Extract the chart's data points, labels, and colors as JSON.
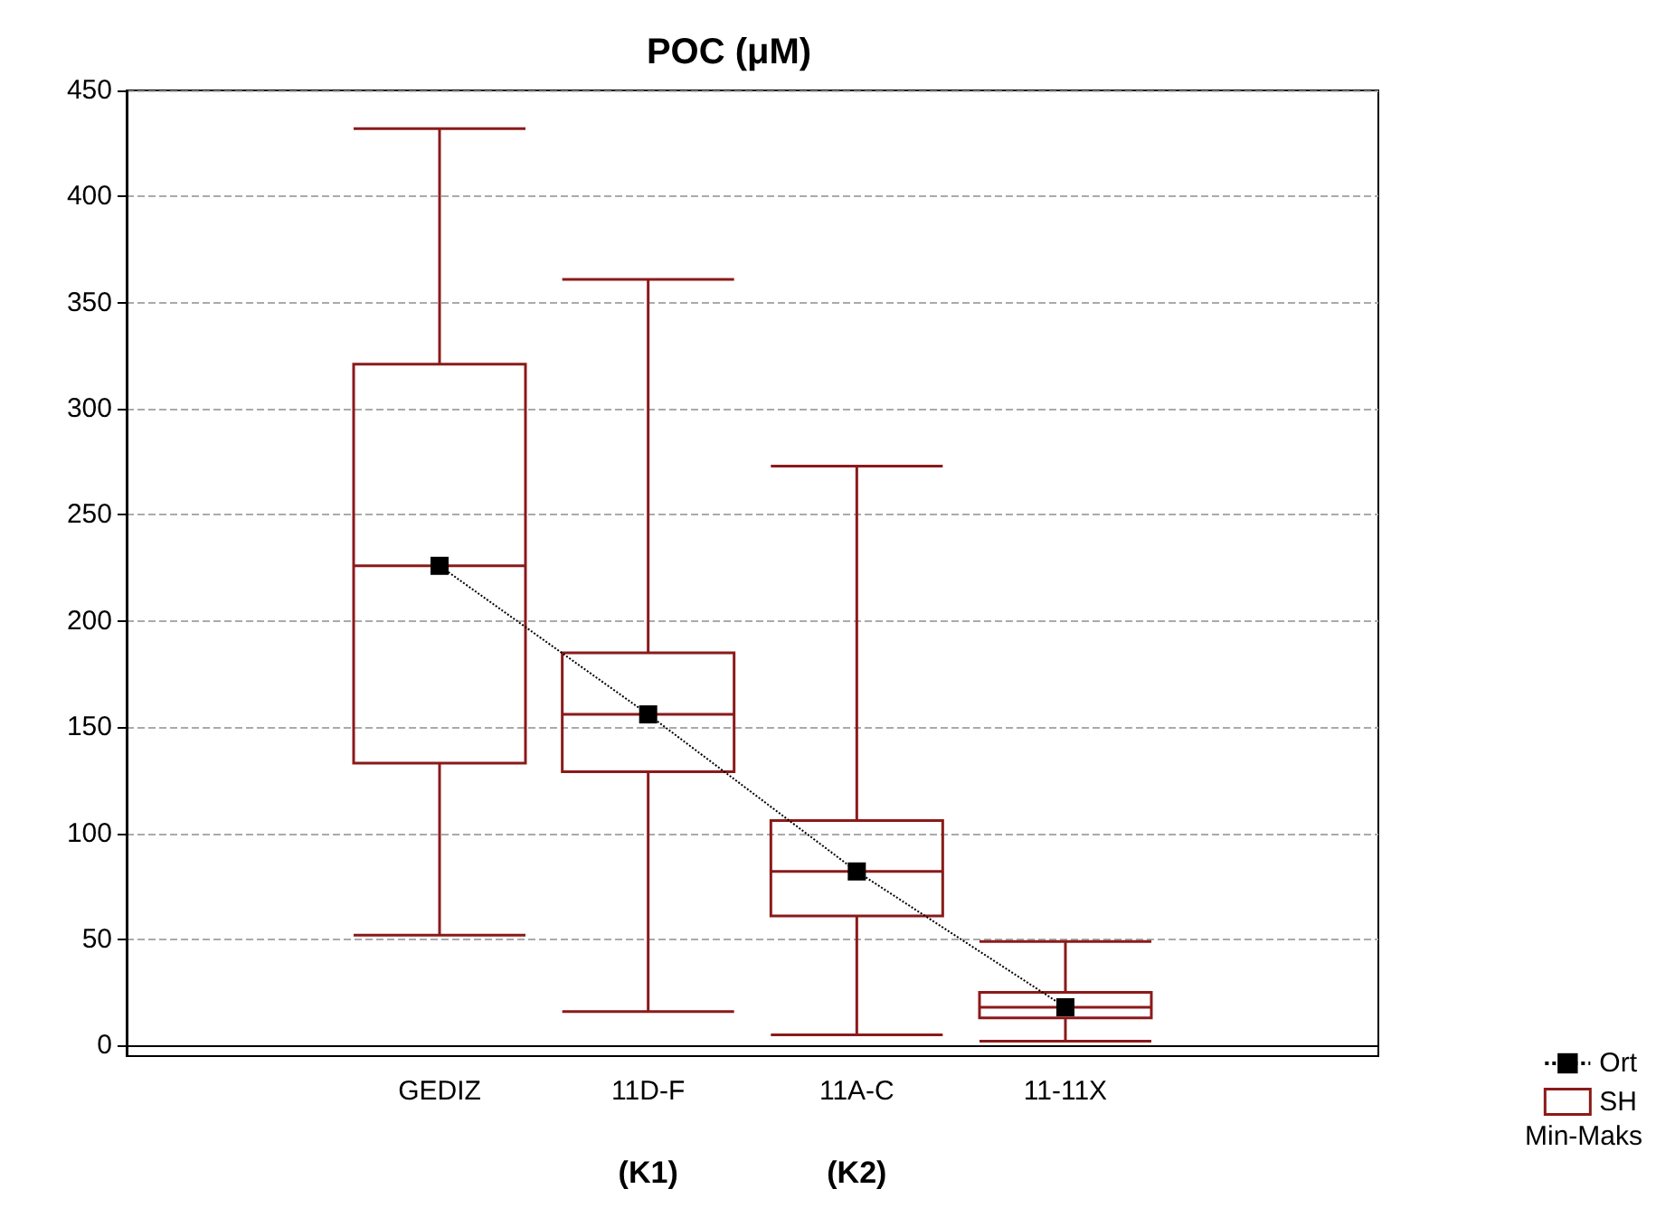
{
  "chart_data": {
    "type": "box",
    "title": "POC (μM)",
    "categories": [
      null,
      "GEDIZ",
      "11D-F",
      "11A-C",
      "11-11X",
      null
    ],
    "series": [
      {
        "name": "Ort",
        "type": "line",
        "color": "#000000",
        "marker": "square",
        "line_style": "dotted",
        "values": [
          null,
          226,
          156,
          82,
          18,
          null
        ]
      },
      {
        "name": "SH",
        "color": "#8b1a1a",
        "boxes": [
          null,
          {
            "low": 52,
            "q1": 133,
            "median": 226,
            "q3": 321,
            "high": 432
          },
          {
            "low": 16,
            "q1": 129,
            "median": 156,
            "q3": 185,
            "high": 361
          },
          {
            "low": 5,
            "q1": 61,
            "median": 82,
            "q3": 106,
            "high": 273
          },
          {
            "low": 2,
            "q1": 13,
            "median": 18,
            "q3": 25,
            "high": 49
          },
          null
        ]
      }
    ],
    "ylim": [
      -5,
      450
    ],
    "yticks": [
      0,
      50,
      100,
      150,
      200,
      250,
      300,
      350,
      400,
      450
    ],
    "grid": "y",
    "legend": "bottom right",
    "annotations": [
      "Min-Maks",
      "(K1)",
      "(K2)"
    ]
  }
}
